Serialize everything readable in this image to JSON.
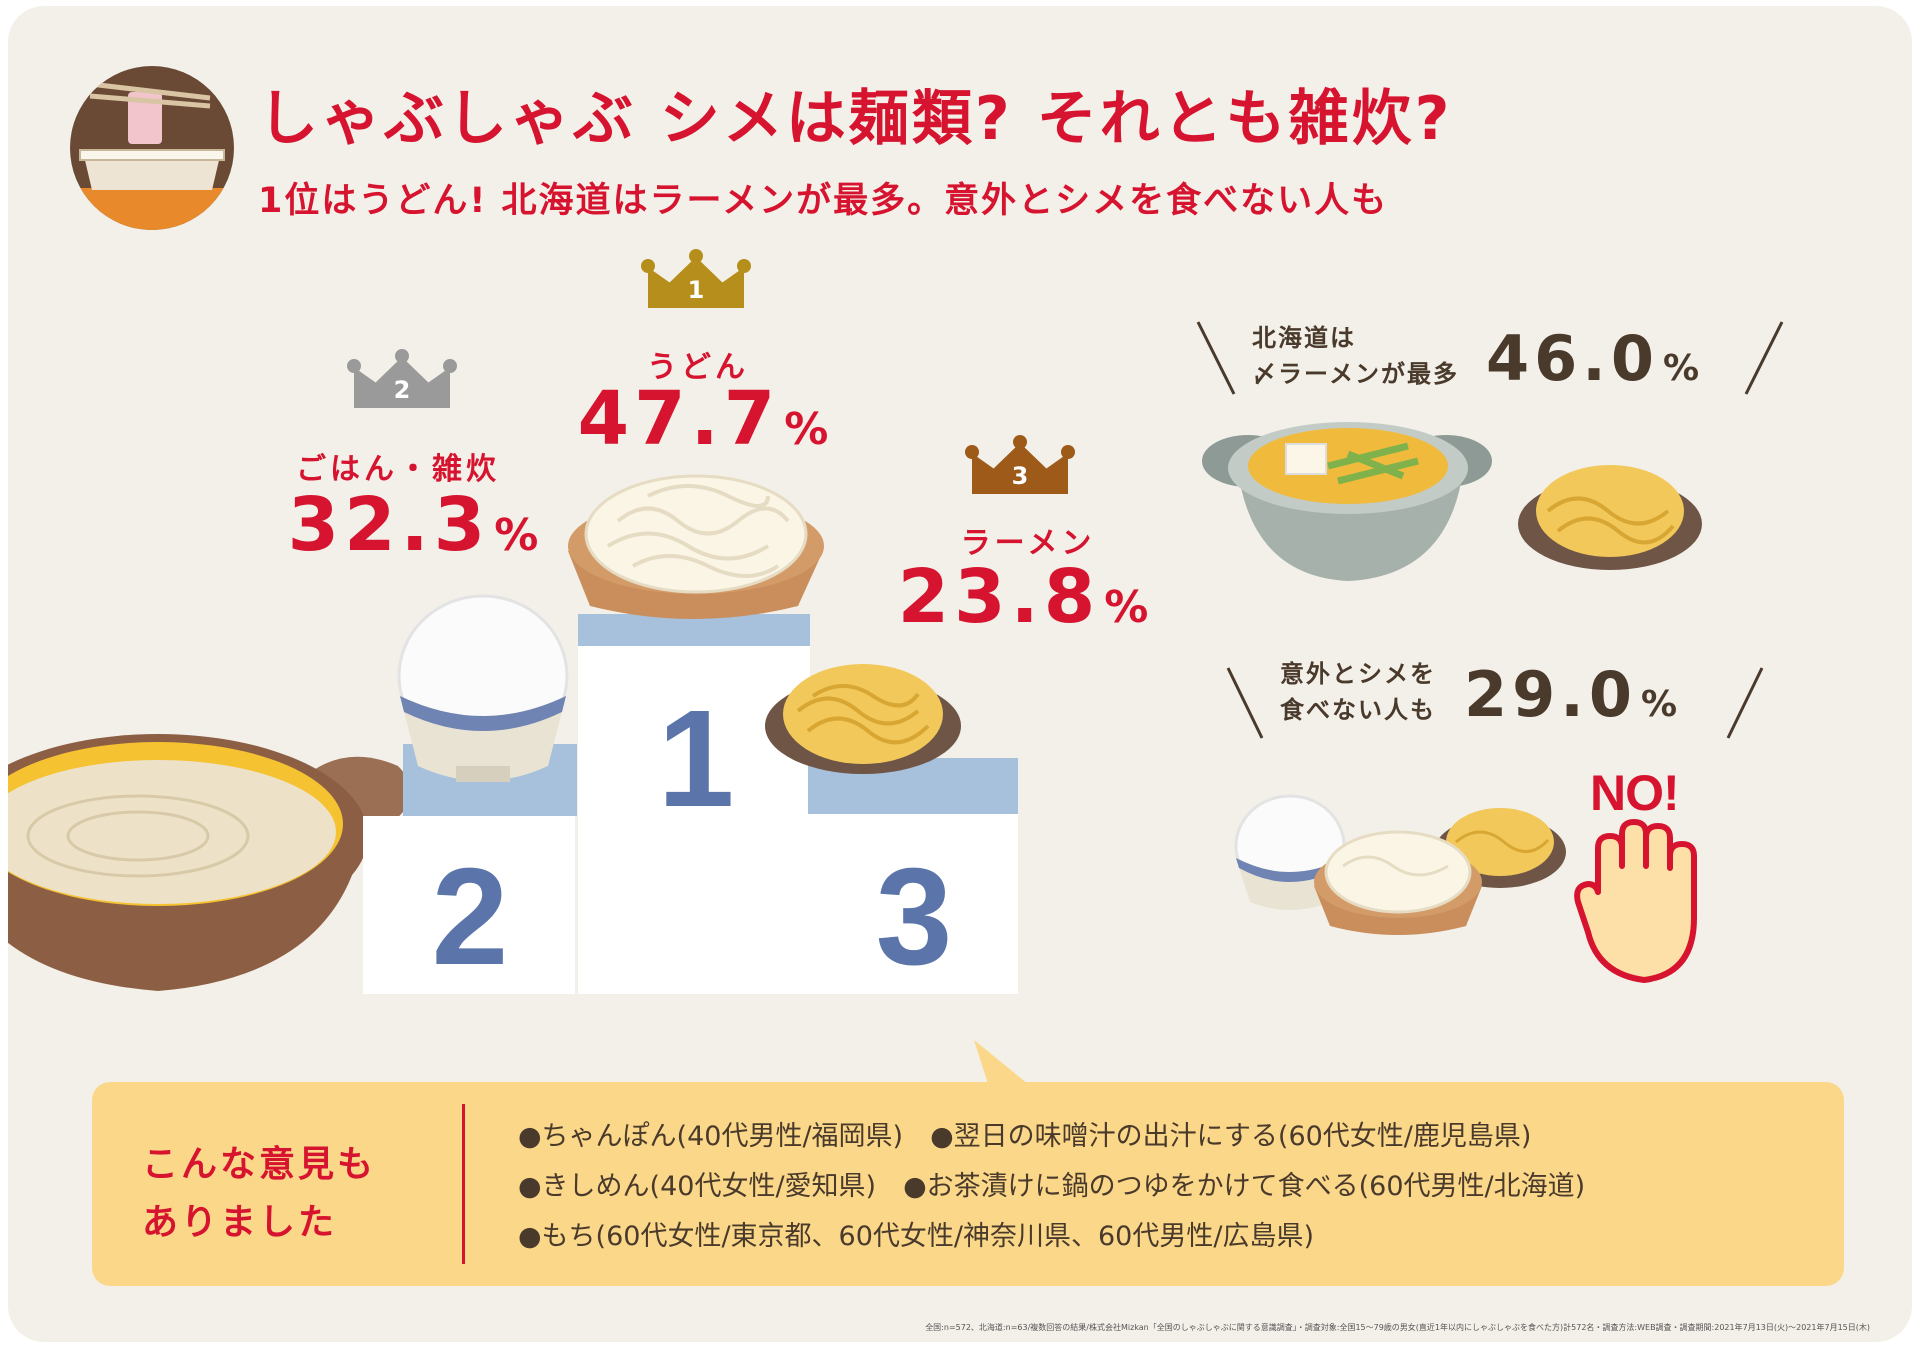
{
  "header": {
    "title": "しゃぶしゃぶ シメは麺類? それとも雑炊?",
    "subtitle": "1位はうどん! 北海道はラーメンが最多。意外とシメを食べない人も"
  },
  "colors": {
    "accent_red": "#d7142f",
    "podium_number": "#5b75aa",
    "gold": "#b58e1c",
    "silver": "#9a9a9a",
    "bronze": "#9d5a18",
    "opinion_bg": "#fbd889"
  },
  "chart_data": [
    {
      "type": "bar",
      "categories": [
        "うどん",
        "ごはん・雑炊",
        "ラーメン"
      ],
      "ranks": [
        "1",
        "2",
        "3"
      ],
      "values": [
        47.7,
        32.3,
        23.8
      ],
      "value_labels": [
        "47.7",
        "32.3",
        "23.8"
      ],
      "unit": "%"
    }
  ],
  "side_stats": {
    "hokkaido": {
      "label_line1": "北海道は",
      "label_line2": "〆ラーメンが最多",
      "value": "46.0",
      "unit": "%"
    },
    "no_shime": {
      "label_line1": "意外とシメを",
      "label_line2": "食べない人も",
      "value": "29.0",
      "unit": "%"
    },
    "no_sign": "NO!"
  },
  "opinions": {
    "heading_line1": "こんな意見も",
    "heading_line2": "ありました",
    "lines": [
      "●ちゃんぽん(40代男性/福岡県)　●翌日の味噌汁の出汁にする(60代女性/鹿児島県)",
      "●きしめん(40代女性/愛知県)　●お茶漬けに鍋のつゆをかけて食べる(60代男性/北海道)",
      "●もち(60代女性/東京都、60代女性/神奈川県、60代男性/広島県)"
    ]
  },
  "footnote": "全国:n=572、北海道:n=63/複数回答の結果/株式会社Mizkan「全国のしゃぶしゃぶに関する意識調査」・調査対象:全国15～79歳の男女(直近1年以内にしゃぶしゃぶを食べた方)計572名・調査方法:WEB調査・調査期間:2021年7月13日(火)～2021年7月15日(木)"
}
